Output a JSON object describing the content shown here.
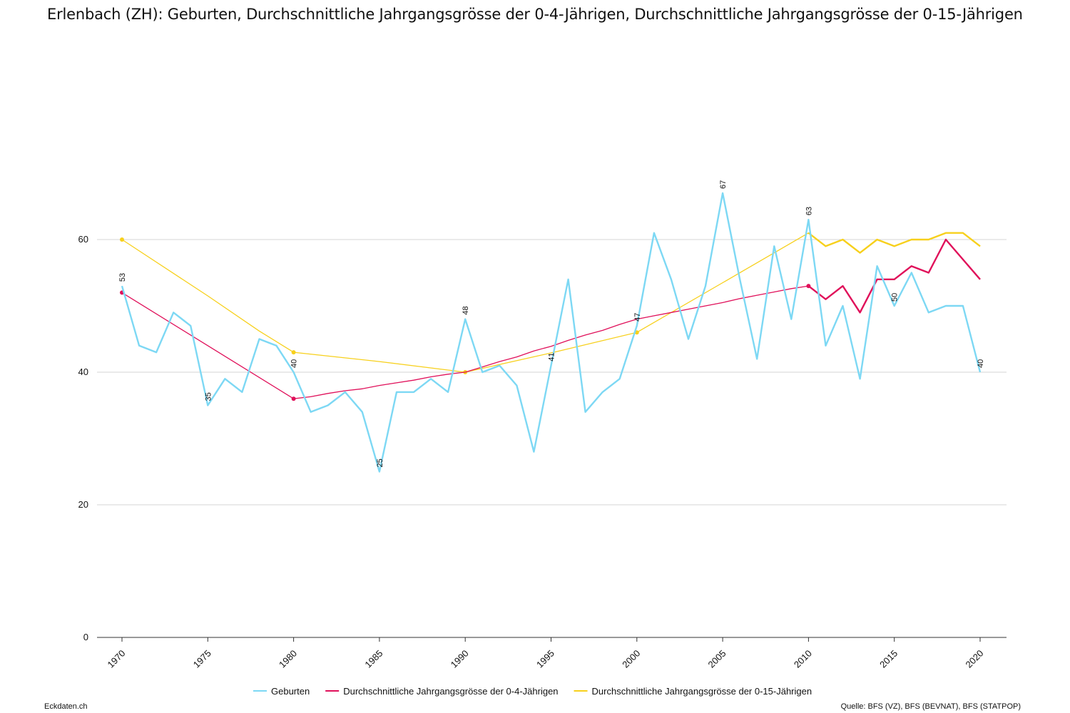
{
  "title": "Erlenbach (ZH): Geburten, Durchschnittliche Jahrgangsgrösse der 0-4-Jährigen, Durchschnittliche Jahrgangsgrösse der 0-15-Jährigen",
  "footer": {
    "left": "Eckdaten.ch",
    "right": "Quelle: BFS (VZ), BFS (BEVNAT), BFS (STATPOP)"
  },
  "colors": {
    "geburten": "#7dd8f4",
    "avg04": "#e0105a",
    "avg015": "#f7d01c",
    "grid": "#d4d4d4",
    "axis": "#333333"
  },
  "chart_data": {
    "type": "line",
    "xlim": [
      1970,
      2020
    ],
    "ylim": [
      0,
      70
    ],
    "yticks": [
      0,
      20,
      40,
      60
    ],
    "xticks": [
      1970,
      1975,
      1980,
      1985,
      1990,
      1995,
      2000,
      2005,
      2010,
      2015,
      2020
    ],
    "grid": "horizontal",
    "legend": "bottom",
    "series": [
      {
        "name": "Geburten",
        "key": "geburten",
        "x": [
          1970,
          1971,
          1972,
          1973,
          1974,
          1975,
          1976,
          1977,
          1978,
          1979,
          1980,
          1981,
          1982,
          1983,
          1984,
          1985,
          1986,
          1987,
          1988,
          1989,
          1990,
          1991,
          1992,
          1993,
          1994,
          1995,
          1996,
          1997,
          1998,
          1999,
          2000,
          2001,
          2002,
          2003,
          2004,
          2005,
          2006,
          2007,
          2008,
          2009,
          2010,
          2011,
          2012,
          2013,
          2014,
          2015,
          2016,
          2017,
          2018,
          2019,
          2020
        ],
        "y": [
          53,
          44,
          43,
          49,
          47,
          35,
          39,
          37,
          45,
          44,
          40,
          34,
          35,
          37,
          34,
          25,
          37,
          37,
          39,
          37,
          48,
          40,
          41,
          38,
          28,
          41,
          54,
          34,
          37,
          39,
          47,
          61,
          54,
          45,
          53,
          67,
          54,
          42,
          59,
          48,
          63,
          44,
          50,
          39,
          56,
          50,
          55,
          49,
          50,
          50,
          40
        ],
        "labels": [
          {
            "x": 1970,
            "y": 53,
            "text": "53"
          },
          {
            "x": 1975,
            "y": 35,
            "text": "35"
          },
          {
            "x": 1980,
            "y": 40,
            "text": "40"
          },
          {
            "x": 1985,
            "y": 25,
            "text": "25"
          },
          {
            "x": 1990,
            "y": 48,
            "text": "48"
          },
          {
            "x": 1995,
            "y": 41,
            "text": "41"
          },
          {
            "x": 2000,
            "y": 47,
            "text": "47"
          },
          {
            "x": 2005,
            "y": 67,
            "text": "67"
          },
          {
            "x": 2010,
            "y": 63,
            "text": "63"
          },
          {
            "x": 2015,
            "y": 50,
            "text": "50"
          },
          {
            "x": 2020,
            "y": 40,
            "text": "40"
          }
        ]
      },
      {
        "name": "Durchschnittliche Jahrgangsgrösse der 0-4-Jährigen",
        "key": "avg04",
        "x": [
          1970,
          1975,
          1980,
          1981,
          1982,
          1983,
          1984,
          1985,
          1986,
          1987,
          1988,
          1989,
          1990,
          1991,
          1992,
          1993,
          1994,
          1995,
          1996,
          1997,
          1998,
          1999,
          2000,
          2001,
          2002,
          2003,
          2004,
          2005,
          2006,
          2007,
          2008,
          2009,
          2010,
          2011,
          2012,
          2013,
          2014,
          2015,
          2016,
          2017,
          2018,
          2019,
          2020
        ],
        "y": [
          52,
          44,
          36,
          36.3,
          36.8,
          37.2,
          37.5,
          38,
          38.4,
          38.8,
          39.3,
          39.7,
          40,
          40.8,
          41.6,
          42.3,
          43.2,
          43.9,
          44.8,
          45.6,
          46.3,
          47.2,
          48,
          48.5,
          49,
          49.5,
          50,
          50.5,
          51.1,
          51.6,
          52.1,
          52.6,
          53,
          51,
          53,
          49,
          54,
          54,
          56,
          55,
          60,
          57,
          54
        ],
        "markers": [
          1970,
          1980,
          2010
        ]
      },
      {
        "name": "Durchschnittliche Jahrgangsgrösse der 0-15-Jährigen",
        "key": "avg015",
        "x": [
          1970,
          1975,
          1978,
          1980,
          1985,
          1990,
          1995,
          2000,
          2005,
          2010,
          2011,
          2012,
          2013,
          2014,
          2015,
          2016,
          2017,
          2018,
          2019,
          2020
        ],
        "y": [
          60,
          51.5,
          46.2,
          43,
          41.6,
          40,
          42.9,
          46,
          53.5,
          61,
          59,
          60,
          58,
          60,
          59,
          60,
          60,
          61,
          61,
          59
        ],
        "markers": [
          1970,
          1980,
          1990,
          2000
        ]
      }
    ]
  }
}
